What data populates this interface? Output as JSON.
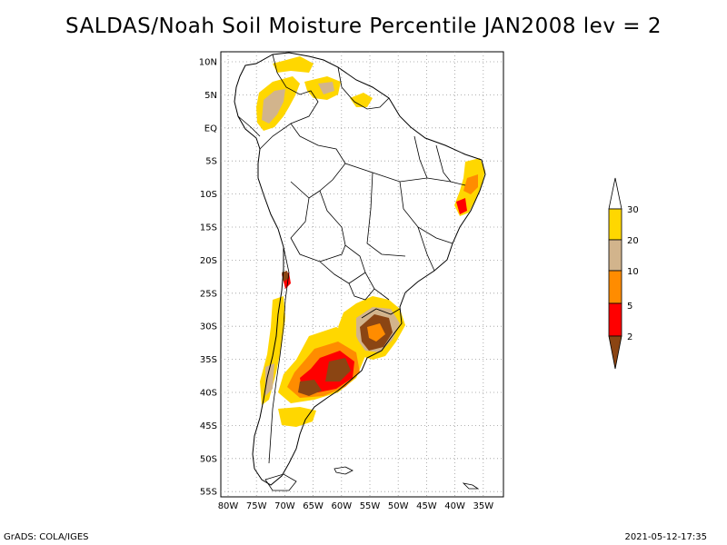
{
  "title": "SALDAS/Noah Soil Moisture Percentile JAN2008 lev = 2",
  "map": {
    "lat_labels": [
      "10N",
      "5N",
      "EQ",
      "5S",
      "10S",
      "15S",
      "20S",
      "25S",
      "30S",
      "35S",
      "40S",
      "45S",
      "50S",
      "55S"
    ],
    "lon_labels": [
      "80W",
      "75W",
      "70W",
      "65W",
      "60W",
      "55W",
      "50W",
      "45W",
      "40W",
      "35W"
    ],
    "grid": true
  },
  "legend": {
    "labels": [
      "30",
      "20",
      "10",
      "5",
      "2"
    ],
    "colors": {
      "above_30": "#ffffff",
      "20_30": "#ffd700",
      "10_20": "#d2b48c",
      "5_10": "#ff8c00",
      "2_5": "#ff0000",
      "below_2": "#8b4513"
    }
  },
  "footer": {
    "left": "GrADS: COLA/IGES",
    "right": "2021-05-12-17:35"
  }
}
